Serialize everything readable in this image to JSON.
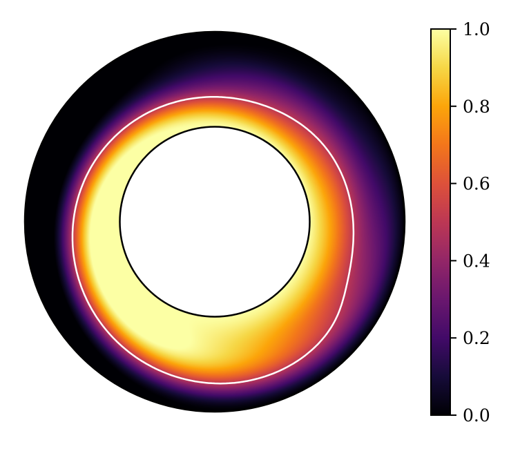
{
  "chart_data": {
    "type": "heatmap",
    "domain": "annulus",
    "title": "",
    "xlabel": "",
    "ylabel": "",
    "colormap": "inferno",
    "value_range": [
      0.0,
      1.0
    ],
    "radius_ratio_inner_to_outer": 0.5,
    "contour_level": 0.5,
    "contour_color": "#ffffff",
    "boundary_color": "#000000",
    "colorbar": {
      "placement": "right",
      "ticks": [
        {
          "value": 0.0,
          "label": "0.0"
        },
        {
          "value": 0.2,
          "label": "0.2"
        },
        {
          "value": 0.4,
          "label": "0.4"
        },
        {
          "value": 0.6,
          "label": "0.6"
        },
        {
          "value": 0.8,
          "label": "0.8"
        },
        {
          "value": 1.0,
          "label": "1.0"
        }
      ]
    }
  }
}
